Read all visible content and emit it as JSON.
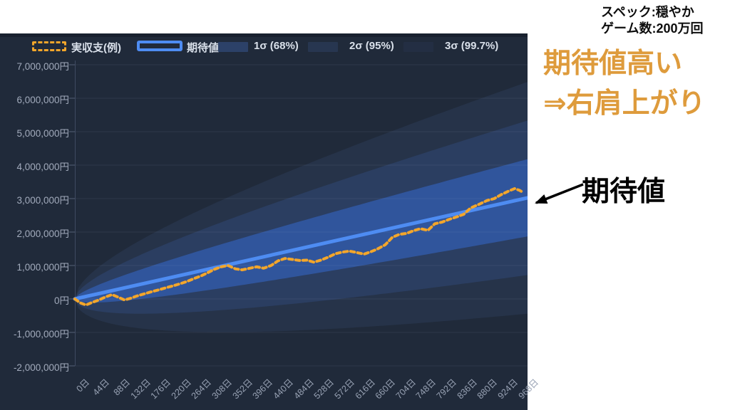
{
  "header": {
    "spec_line1": "スペック:穏やか",
    "spec_line2": "ゲーム数:200万回"
  },
  "annotations": {
    "headline_line1": "期待値高い",
    "headline_line2": "⇒右肩上がり",
    "headline_color": "#de9b3c",
    "expected_value_callout": "期待値"
  },
  "chart_data": {
    "type": "line",
    "x_unit": "日",
    "y_unit": "円",
    "x_max": 968,
    "x_ticks": [
      0,
      44,
      88,
      132,
      176,
      220,
      264,
      308,
      352,
      396,
      440,
      484,
      528,
      572,
      616,
      660,
      704,
      748,
      792,
      836,
      880,
      924,
      968
    ],
    "x_tick_labels": [
      "0日",
      "44日",
      "88日",
      "132日",
      "176日",
      "220日",
      "264日",
      "308日",
      "352日",
      "396日",
      "440日",
      "484日",
      "528日",
      "572日",
      "616日",
      "660日",
      "704日",
      "748日",
      "792日",
      "836日",
      "880日",
      "924日",
      "968日"
    ],
    "y_ticks": [
      {
        "value": 7000000,
        "label": "7,000,000円"
      },
      {
        "value": 6000000,
        "label": "6,000,000円"
      },
      {
        "value": 5000000,
        "label": "5,000,000円"
      },
      {
        "value": 4000000,
        "label": "4,000,000円"
      },
      {
        "value": 3000000,
        "label": "3,000,000円"
      },
      {
        "value": 2000000,
        "label": "2,000,000円"
      },
      {
        "value": 1000000,
        "label": "1,000,000円"
      },
      {
        "value": 0,
        "label": "0円"
      },
      {
        "value": -1000000,
        "label": "-1,000,000円"
      },
      {
        "value": -2000000,
        "label": "-2,000,000円"
      }
    ],
    "legend": [
      {
        "label": "実収支(例)",
        "type": "dashed-outline",
        "color": "#f3a62b"
      },
      {
        "label": "期待値",
        "type": "solid-outline",
        "color": "#4e8cf2"
      },
      {
        "label": "1σ (68%)",
        "type": "fill",
        "color": "#2c4168"
      },
      {
        "label": "2σ (95%)",
        "type": "fill",
        "color": "#273650"
      },
      {
        "label": "3σ (99.7%)",
        "type": "fill",
        "color": "#232e43"
      }
    ],
    "expected": {
      "name": "期待値",
      "start_day": 0,
      "start_value": 0,
      "end_day": 968,
      "end_value": 3000000,
      "color": "#4e8cf2"
    },
    "sigma_end": 1150000,
    "bands": [
      {
        "k": 1,
        "name": "1σ (68%)",
        "fill": "#30559c"
      },
      {
        "k": 2,
        "name": "2σ (95%)",
        "fill": "#2b3e61"
      },
      {
        "k": 3,
        "name": "3σ (99.7%)",
        "fill": "#263349"
      }
    ],
    "actual": {
      "name": "実収支(例)",
      "color": "#f3a62b",
      "days": [
        0,
        12,
        24,
        38,
        52,
        66,
        80,
        94,
        107,
        120,
        134,
        149,
        164,
        180,
        195,
        211,
        226,
        241,
        257,
        272,
        287,
        300,
        315,
        330,
        346,
        361,
        377,
        392,
        407,
        423,
        438,
        453,
        469,
        484,
        500,
        515,
        530,
        546,
        561,
        576,
        592,
        607,
        623,
        638,
        653,
        669,
        684,
        699,
        715,
        730,
        745,
        761,
        776,
        792,
        807,
        822,
        838,
        853,
        873,
        888,
        904,
        919,
        934,
        948,
        958,
        968
      ],
      "values": [
        0,
        -120000,
        -180000,
        -100000,
        -30000,
        60000,
        130000,
        50000,
        -30000,
        20000,
        90000,
        150000,
        210000,
        270000,
        330000,
        390000,
        450000,
        520000,
        610000,
        690000,
        790000,
        880000,
        960000,
        1000000,
        900000,
        870000,
        920000,
        960000,
        920000,
        1000000,
        1140000,
        1210000,
        1180000,
        1150000,
        1160000,
        1100000,
        1160000,
        1250000,
        1350000,
        1400000,
        1430000,
        1390000,
        1340000,
        1410000,
        1500000,
        1620000,
        1840000,
        1930000,
        1960000,
        2040000,
        2100000,
        2050000,
        2250000,
        2300000,
        2380000,
        2450000,
        2530000,
        2720000,
        2840000,
        2940000,
        3000000,
        3120000,
        3220000,
        3300000,
        3250000,
        3170000
      ]
    },
    "colors": {
      "panel_bg": "#202a3a",
      "grid": "rgba(173,191,219,0.10)",
      "axis": "#3f4a61",
      "tick_mark": "#556076",
      "tick_text": "#98a2b4"
    },
    "ylim": [
      -2000000,
      7000000
    ],
    "grid": true,
    "legend_position": "top"
  }
}
